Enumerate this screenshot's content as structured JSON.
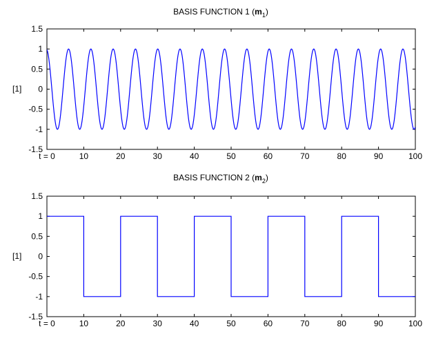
{
  "chart_data": [
    {
      "type": "line",
      "title_main": "BASIS FUNCTION 1 (",
      "title_var": "m",
      "title_sub": "1",
      "title_close": ")",
      "ylabel": "[1]",
      "xlim": [
        0,
        100
      ],
      "ylim": [
        -1.5,
        1.5
      ],
      "xticks": [
        0,
        10,
        20,
        30,
        40,
        50,
        60,
        70,
        80,
        90,
        100
      ],
      "xtick_labels": [
        "t = 0",
        "10",
        "20",
        "30",
        "40",
        "50",
        "60",
        "70",
        "80",
        "90",
        "100"
      ],
      "yticks": [
        1.5,
        1,
        0.5,
        0,
        -0.5,
        -1,
        -1.5
      ],
      "ytick_labels": [
        "1.5",
        "1",
        "0.5",
        "0",
        "-0.5",
        "-1",
        "-1.5"
      ],
      "grid": false,
      "series": [
        {
          "function": "sinusoid",
          "amplitude": 1,
          "period": 6.05,
          "phase_deg": 100,
          "x_start": 0,
          "x_end": 100,
          "color": "#0000ff"
        }
      ]
    },
    {
      "type": "line",
      "title_main": "BASIS FUNCTION 2 (",
      "title_var": "m",
      "title_sub": "2",
      "title_close": ")",
      "ylabel": "[1]",
      "xlim": [
        0,
        100
      ],
      "ylim": [
        -1.5,
        1.5
      ],
      "xticks": [
        0,
        10,
        20,
        30,
        40,
        50,
        60,
        70,
        80,
        90,
        100
      ],
      "xtick_labels": [
        "t = 0",
        "10",
        "20",
        "30",
        "40",
        "50",
        "60",
        "70",
        "80",
        "90",
        "100"
      ],
      "yticks": [
        1.5,
        1,
        0.5,
        0,
        -0.5,
        -1,
        -1.5
      ],
      "ytick_labels": [
        "1.5",
        "1",
        "0.5",
        "0",
        "-0.5",
        "-1",
        "-1.5"
      ],
      "grid": false,
      "series": [
        {
          "function": "square",
          "color": "#0000ff",
          "x": [
            0,
            10,
            10,
            20,
            20,
            30,
            30,
            40,
            40,
            50,
            50,
            60,
            60,
            70,
            70,
            80,
            80,
            90,
            90,
            100
          ],
          "y": [
            1,
            1,
            -1,
            -1,
            1,
            1,
            -1,
            -1,
            1,
            1,
            -1,
            -1,
            1,
            1,
            -1,
            -1,
            1,
            1,
            -1,
            -1
          ]
        }
      ]
    }
  ]
}
